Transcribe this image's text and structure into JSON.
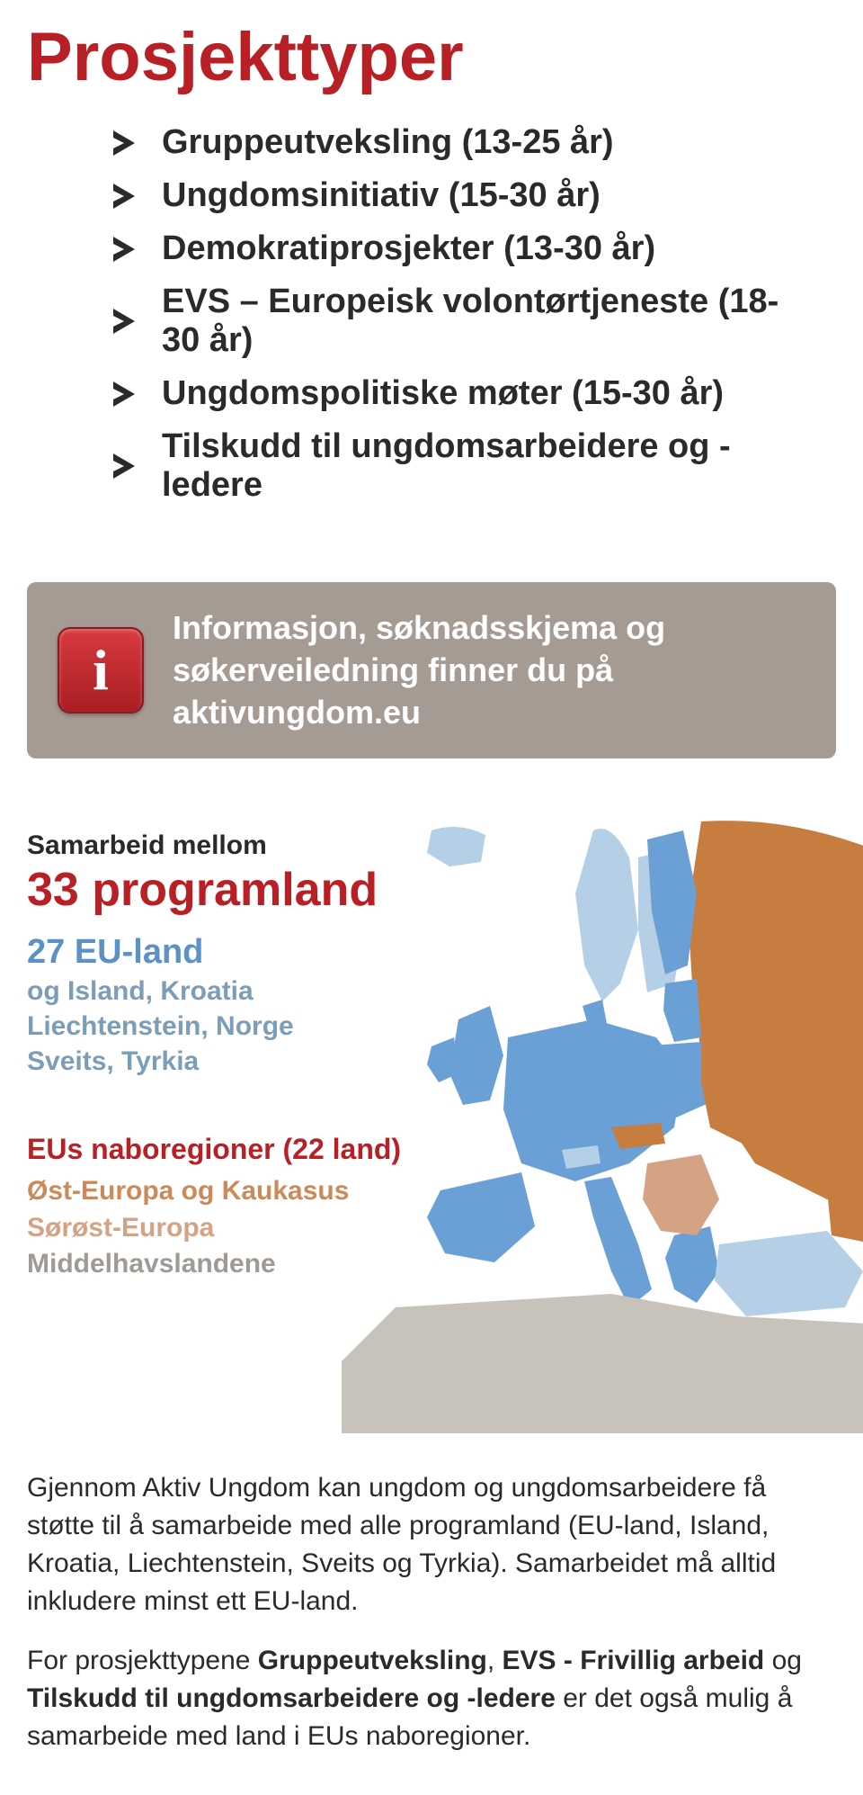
{
  "title": "Prosjekttyper",
  "colors": {
    "accent_red": "#b82025",
    "text_dark": "#2a2a2a",
    "eu_blue": "#5b92c6",
    "eu_light_blue": "#7c9db7",
    "orange1": "#cc8a5a",
    "orange2": "#d6a284",
    "grey": "#9f9a94",
    "info_bg": "#a69b93",
    "map_eu": "#6aa0d6",
    "map_eu_light": "#b4cfe6",
    "map_neighbor": "#c77d3f",
    "map_neighbor_light": "#d6a284",
    "map_neutral": "#c7c2ba"
  },
  "project_types": [
    "Gruppeutveksling (13-25 år)",
    "Ungdomsinitiativ (15-30 år)",
    "Demokratiprosjekter (13-30 år)",
    "EVS – Europeisk volontørtjeneste (18-30 år)",
    "Ungdomspolitiske møter (15-30 år)",
    "Tilskudd til ungdomsarbeidere og -ledere"
  ],
  "info_box": {
    "icon_letter": "i",
    "text": "Informasjon, søknadsskjema og søkerveiledning finner du på aktivungdom.eu"
  },
  "map_section": {
    "samarbeid_label": "Samarbeid mellom",
    "programland_title": "33 programland",
    "eu_land": "27 EU-land",
    "eu_sub": "og Island, Kroatia\nLiechtenstein, Norge\nSveits, Tyrkia",
    "nabo_title": "EUs naboregioner (22 land)",
    "region_ost": "Øst-Europa og Kaukasus",
    "region_sor": "Sørøst-Europa",
    "region_mid": "Middelhavslandene"
  },
  "body_paragraphs": {
    "p1_pre": "Gjennom Aktiv Ungdom kan ungdom og ungdomsarbeidere få støtte til å samarbeide med alle programland (EU-land, Island, Kroatia, Liechtenstein, Sveits og Tyrkia). Samarbeidet må alltid inkludere minst ett EU-land.",
    "p2_a": "For prosjekttypene ",
    "p2_b1": "Gruppeutveksling",
    "p2_c": ", ",
    "p2_b2": "EVS - Frivillig arbeid",
    "p2_d": " og ",
    "p2_b3": "Tilskudd til ungdomsarbeidere og -ledere",
    "p2_e": " er det også mulig å samarbeide med land i EUs naboregioner."
  }
}
